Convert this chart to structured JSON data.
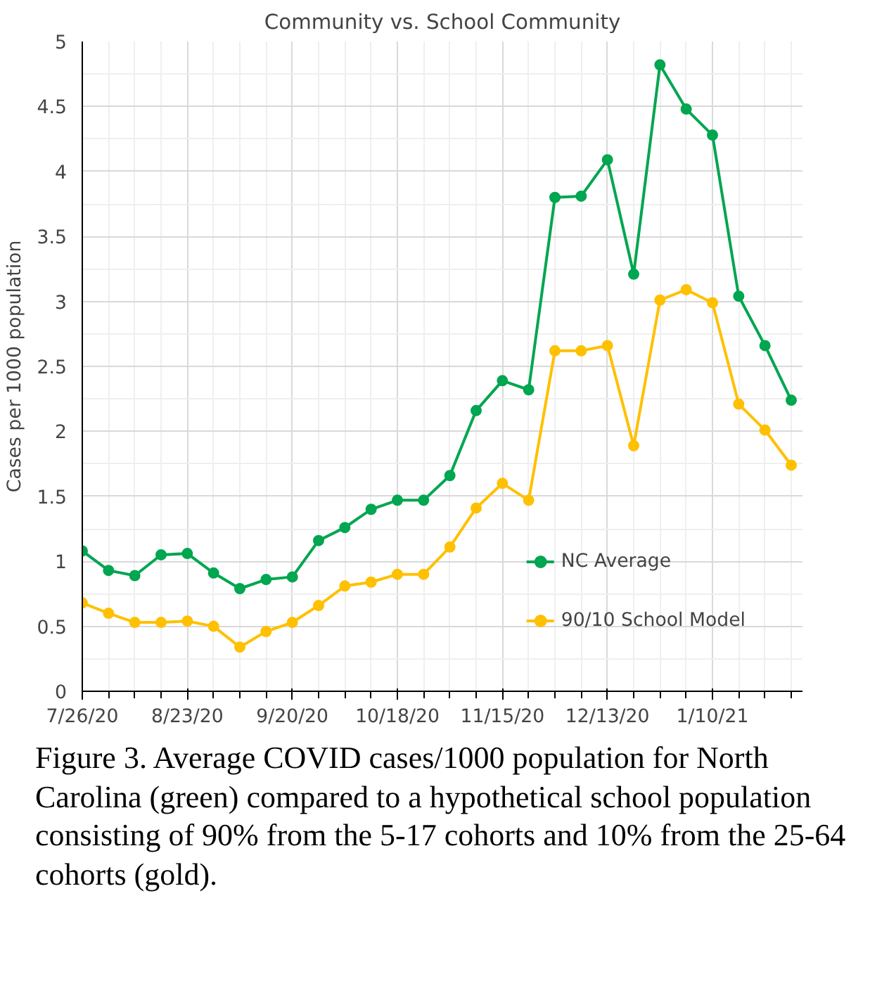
{
  "chart_data": {
    "type": "line",
    "title": "Community vs. School Community",
    "ylabel": "Cases per 1000 population",
    "x": [
      "2020-07-26",
      "2020-08-02",
      "2020-08-09",
      "2020-08-16",
      "2020-08-23",
      "2020-08-30",
      "2020-09-06",
      "2020-09-13",
      "2020-09-20",
      "2020-09-27",
      "2020-10-04",
      "2020-10-11",
      "2020-10-18",
      "2020-10-25",
      "2020-11-01",
      "2020-11-08",
      "2020-11-15",
      "2020-11-22",
      "2020-11-29",
      "2020-12-06",
      "2020-12-13",
      "2020-12-20",
      "2020-12-27",
      "2021-01-03",
      "2021-01-10",
      "2021-01-17",
      "2021-01-24",
      "2021-01-31"
    ],
    "series": [
      {
        "name": "NC Average",
        "color": "#00a650",
        "values": [
          1.08,
          0.93,
          0.89,
          1.05,
          1.06,
          0.91,
          0.79,
          0.86,
          0.88,
          1.16,
          1.26,
          1.4,
          1.47,
          1.47,
          1.66,
          2.16,
          2.39,
          2.32,
          3.8,
          3.81,
          4.09,
          3.21,
          4.82,
          4.48,
          4.28,
          3.04,
          2.66,
          2.24
        ]
      },
      {
        "name": "90/10 School Model",
        "color": "#ffc000",
        "values": [
          0.68,
          0.6,
          0.53,
          0.53,
          0.54,
          0.5,
          0.34,
          0.46,
          0.53,
          0.66,
          0.81,
          0.84,
          0.9,
          0.9,
          1.11,
          1.41,
          1.6,
          1.47,
          2.62,
          2.62,
          2.66,
          1.89,
          3.01,
          3.09,
          2.99,
          2.21,
          2.01,
          1.74
        ]
      }
    ],
    "xlim": [
      "2020-07-26",
      "2021-02-03"
    ],
    "xticks": [
      {
        "value": "2020-07-26",
        "label": "7/26/20"
      },
      {
        "value": "2020-08-23",
        "label": "8/23/20"
      },
      {
        "value": "2020-09-20",
        "label": "9/20/20"
      },
      {
        "value": "2020-10-18",
        "label": "10/18/20"
      },
      {
        "value": "2020-11-15",
        "label": "11/15/20"
      },
      {
        "value": "2020-12-13",
        "label": "12/13/20"
      },
      {
        "value": "2021-01-10",
        "label": "1/10/21"
      }
    ],
    "ylim": [
      0,
      5
    ],
    "yticks": [
      0,
      0.5,
      1,
      1.5,
      2,
      2.5,
      3,
      3.5,
      4,
      4.5,
      5
    ],
    "grid": true,
    "legend": "bottom right",
    "marker": "circle",
    "line_style": "solid",
    "annotations": [
      "Figure 3.  Average COVID cases/1000 population for North Carolina (green) compared to a hypothetical school population consisting of 90% from the 5-17 cohorts and 10% from the 25-64 cohorts (gold)."
    ]
  }
}
